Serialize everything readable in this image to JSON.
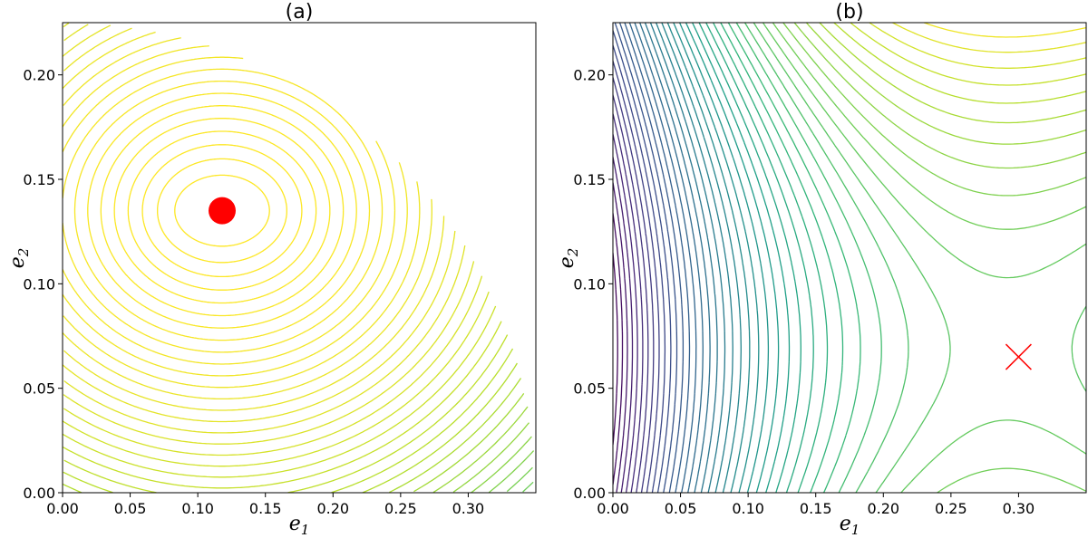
{
  "chart_data": [
    {
      "type": "contour",
      "title": "(a)",
      "xlabel": "e1",
      "ylabel": "e2",
      "xlim": [
        0.0,
        0.35
      ],
      "ylim": [
        0.0,
        0.225
      ],
      "xticks": [
        "0.00",
        "0.05",
        "0.10",
        "0.15",
        "0.20",
        "0.25",
        "0.30"
      ],
      "yticks": [
        "0.00",
        "0.05",
        "0.10",
        "0.15",
        "0.20"
      ],
      "xtick_values": [
        0.0,
        0.05,
        0.1,
        0.15,
        0.2,
        0.25,
        0.3
      ],
      "ytick_values": [
        0.0,
        0.05,
        0.1,
        0.15,
        0.2
      ],
      "colormap": "viridis",
      "center": {
        "e1": 0.118,
        "e2": 0.135
      },
      "boundary_radius": {
        "e1": 0.35,
        "e2": 0.225
      },
      "level_count": 55,
      "marker": {
        "shape": "filled-circle",
        "color": "#ff0000",
        "e1": 0.118,
        "e2": 0.135
      }
    },
    {
      "type": "contour",
      "title": "(b)",
      "xlabel": "e1",
      "ylabel": "e2",
      "xlim": [
        0.0,
        0.35
      ],
      "ylim": [
        0.0,
        0.225
      ],
      "xticks": [
        "0.00",
        "0.05",
        "0.10",
        "0.15",
        "0.20",
        "0.25",
        "0.30"
      ],
      "yticks": [
        "0.00",
        "0.05",
        "0.10",
        "0.15",
        "0.20"
      ],
      "xtick_values": [
        0.0,
        0.05,
        0.1,
        0.15,
        0.2,
        0.25,
        0.3
      ],
      "ytick_values": [
        0.0,
        0.05,
        0.1,
        0.15,
        0.2
      ],
      "colormap": "viridis",
      "saddle": {
        "e1": 0.3,
        "e2": 0.065
      },
      "marker": {
        "shape": "x",
        "color": "#ff0000",
        "e1": 0.3,
        "e2": 0.065
      }
    }
  ]
}
